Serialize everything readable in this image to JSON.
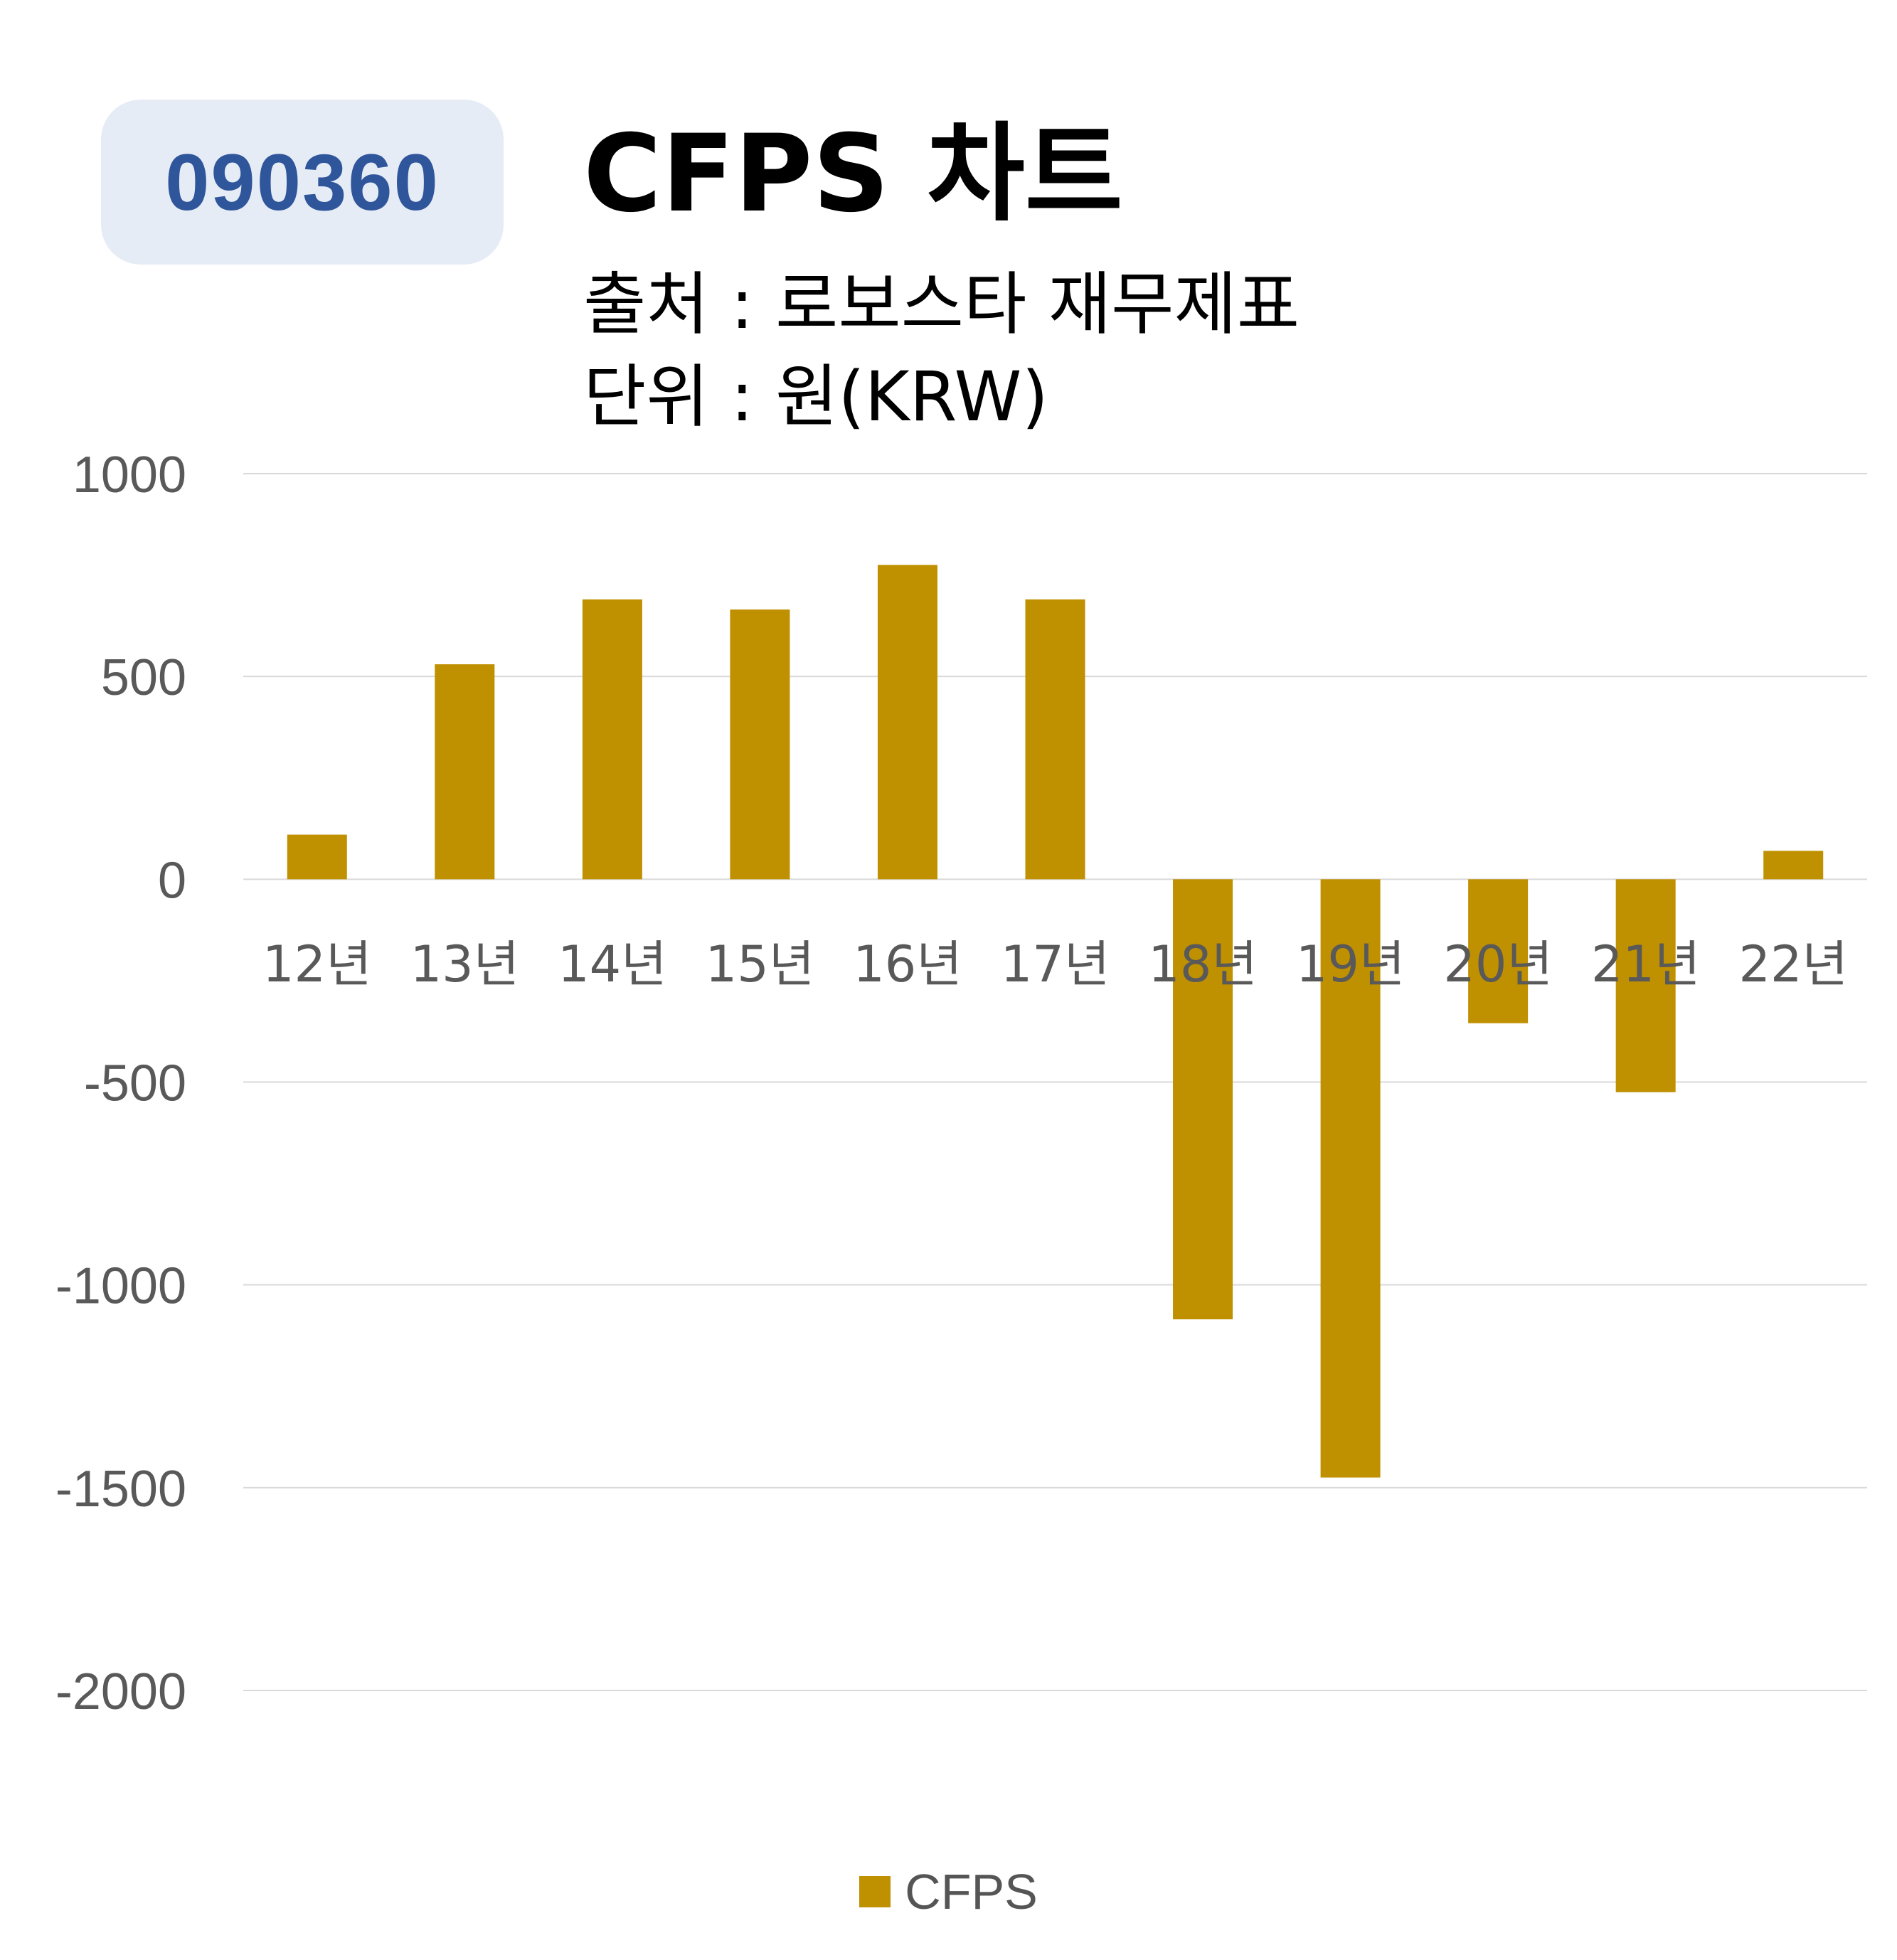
{
  "badge": {
    "code": "090360"
  },
  "header": {
    "title": "CFPS 차트",
    "source": "출처 : 로보스타 재무제표",
    "unit": "단위 : 원(KRW)"
  },
  "colors": {
    "bar": "#bf9000",
    "grid": "#d9d9d9",
    "tick": "#595959",
    "badge_bg": "#e6ecf6",
    "badge_text": "#2f559a"
  },
  "chart_data": {
    "type": "bar",
    "categories": [
      "12년",
      "13년",
      "14년",
      "15년",
      "16년",
      "17년",
      "18년",
      "19년",
      "20년",
      "21년",
      "22년"
    ],
    "series": [
      {
        "name": "CFPS",
        "values": [
          110,
          530,
          690,
          665,
          775,
          690,
          -1085,
          -1475,
          -355,
          -525,
          70
        ]
      }
    ],
    "yticks": [
      "1000",
      "500",
      "0",
      "-500",
      "-1000",
      "-1500",
      "-2000"
    ],
    "ylim": [
      -2000,
      1000
    ],
    "grid": true,
    "legend": "bottom"
  }
}
